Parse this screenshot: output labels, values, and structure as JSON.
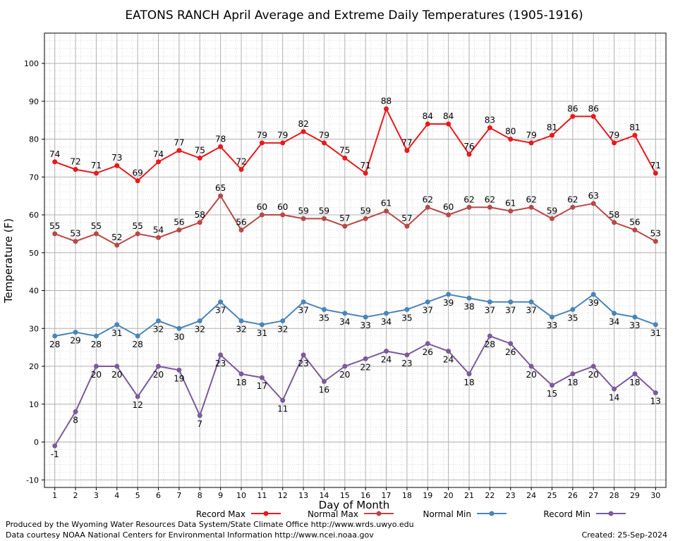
{
  "chart_data": {
    "type": "line",
    "title": "EATONS RANCH April Average and Extreme Daily Temperatures (1905-1916)",
    "xlabel": "Day of Month",
    "ylabel": "Temperature (F)",
    "ylim": [
      -12,
      108
    ],
    "yticks": [
      -10,
      0,
      10,
      20,
      30,
      40,
      50,
      60,
      70,
      80,
      90,
      100
    ],
    "x": [
      1,
      2,
      3,
      4,
      5,
      6,
      7,
      8,
      9,
      10,
      11,
      12,
      13,
      14,
      15,
      16,
      17,
      18,
      19,
      20,
      21,
      22,
      23,
      24,
      25,
      26,
      27,
      28,
      29,
      30
    ],
    "grid": true,
    "legend_position": "bottom",
    "series": [
      {
        "name": "Record Max",
        "color": "#e8191c",
        "label_position": "above",
        "values": [
          74,
          72,
          71,
          73,
          69,
          74,
          77,
          75,
          78,
          72,
          79,
          79,
          82,
          79,
          75,
          71,
          88,
          77,
          84,
          84,
          76,
          83,
          80,
          79,
          81,
          86,
          86,
          79,
          81,
          71
        ]
      },
      {
        "name": "Normal Max",
        "color": "#b84848",
        "label_position": "above",
        "values": [
          55,
          53,
          55,
          52,
          55,
          54,
          56,
          58,
          65,
          56,
          60,
          60,
          59,
          59,
          57,
          59,
          61,
          57,
          62,
          60,
          62,
          62,
          61,
          62,
          59,
          62,
          63,
          58,
          56,
          53
        ]
      },
      {
        "name": "Normal Min",
        "color": "#4a84b8",
        "label_position": "below",
        "values": [
          28,
          29,
          28,
          31,
          28,
          32,
          30,
          32,
          37,
          32,
          31,
          32,
          37,
          35,
          34,
          33,
          34,
          35,
          37,
          39,
          38,
          37,
          37,
          37,
          33,
          35,
          39,
          34,
          33,
          31
        ]
      },
      {
        "name": "Record Min",
        "color": "#7b5a9c",
        "label_position": "below",
        "values": [
          -1,
          8,
          20,
          20,
          12,
          20,
          19,
          7,
          23,
          18,
          17,
          11,
          23,
          16,
          20,
          22,
          24,
          23,
          26,
          24,
          18,
          28,
          26,
          20,
          15,
          18,
          20,
          14,
          18,
          13
        ]
      }
    ]
  },
  "footer": {
    "produced_by": "Produced by the Wyoming Water Resources Data System/State Climate Office http://www.wrds.uwyo.edu",
    "data_courtesy": "Data courtesy NOAA National Centers for Environmental Information http://www.ncei.noaa.gov",
    "created": "Created:  25-Sep-2024"
  }
}
